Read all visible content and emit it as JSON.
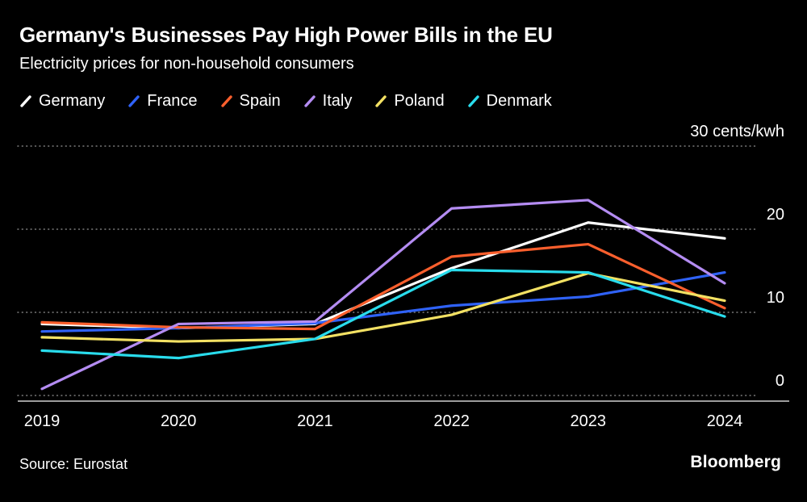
{
  "header": {
    "title": "Germany's Businesses Pay High Power Bills in the EU",
    "subtitle": "Electricity prices for non-household consumers"
  },
  "chart_data": {
    "type": "line",
    "title": "Germany's Businesses Pay High Power Bills in the EU",
    "subtitle": "Electricity prices for non-household consumers",
    "x": [
      "2019",
      "2020",
      "2021",
      "2022",
      "2023",
      "2024"
    ],
    "ylabel": "cents/kwh",
    "ylim": [
      0,
      30
    ],
    "yticks": [
      0,
      10,
      20,
      30
    ],
    "ytick_labels": [
      "0",
      "10",
      "20",
      "30 cents/kwh"
    ],
    "grid": "horizontal-dotted",
    "legend_position": "top-left",
    "series": [
      {
        "name": "Germany",
        "color": "#ffffff",
        "values": [
          8.6,
          8.1,
          8.6,
          15.3,
          20.8,
          18.9
        ]
      },
      {
        "name": "France",
        "color": "#2f62f7",
        "values": [
          7.7,
          8.1,
          8.7,
          10.8,
          11.9,
          14.8
        ]
      },
      {
        "name": "Spain",
        "color": "#fb5f2d",
        "values": [
          8.8,
          8.2,
          8.0,
          16.7,
          18.2,
          10.5
        ]
      },
      {
        "name": "Italy",
        "color": "#b48cf2",
        "values": [
          0.8,
          8.6,
          8.9,
          22.5,
          23.5,
          13.5
        ]
      },
      {
        "name": "Poland",
        "color": "#f3e163",
        "values": [
          7.0,
          6.5,
          6.8,
          9.7,
          14.7,
          11.4
        ]
      },
      {
        "name": "Denmark",
        "color": "#29dcec",
        "values": [
          5.4,
          4.5,
          6.8,
          15.1,
          14.8,
          9.5
        ]
      }
    ]
  },
  "footer": {
    "source": "Source: Eurostat",
    "brand": "Bloomberg"
  }
}
